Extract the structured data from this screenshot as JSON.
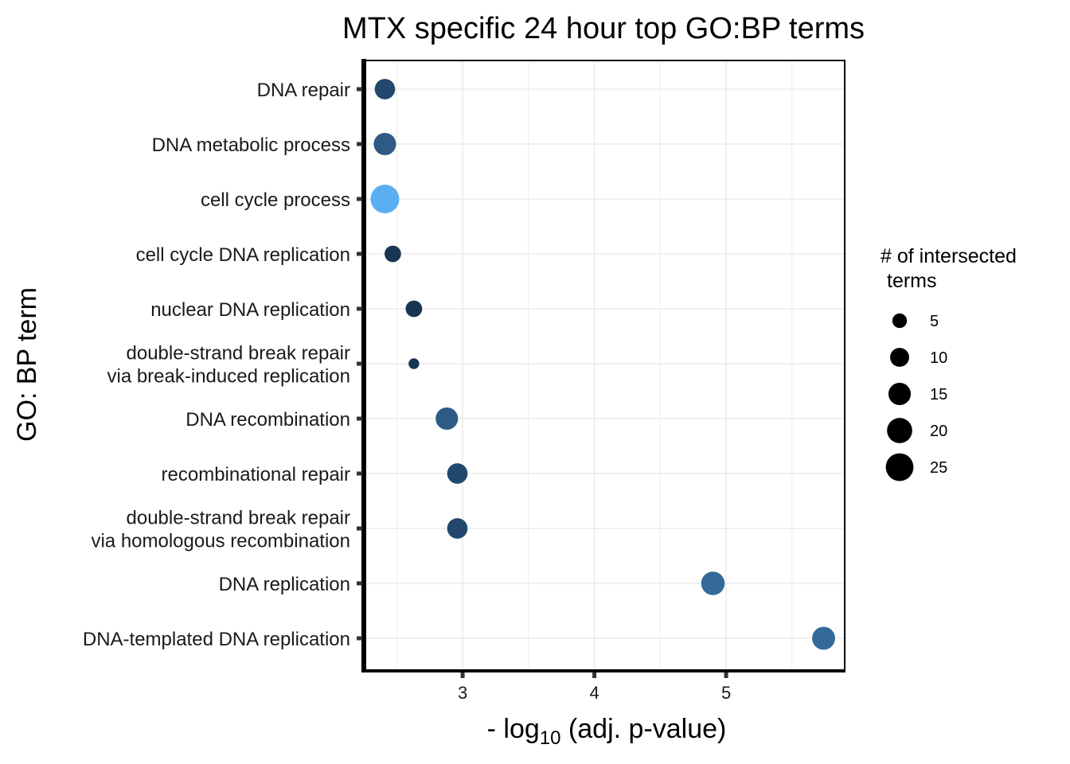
{
  "chart_data": {
    "type": "scatter",
    "title": "MTX specific 24 hour top GO:BP terms",
    "xlabel_prefix": "- log",
    "xlabel_subscript": "10",
    "xlabel_suffix": " (adj. p-value)",
    "ylabel": "GO: BP term",
    "xlim": [
      2.25,
      5.9
    ],
    "xticks": [
      3,
      4,
      5
    ],
    "grid": true,
    "categories": [
      [
        "DNA repair"
      ],
      [
        "DNA metabolic process"
      ],
      [
        "cell cycle process"
      ],
      [
        "cell cycle DNA replication"
      ],
      [
        "nuclear DNA replication"
      ],
      [
        "double-strand break repair",
        "via break-induced replication"
      ],
      [
        "DNA recombination"
      ],
      [
        "recombinational repair"
      ],
      [
        "double-strand break repair",
        "via homologous recombination"
      ],
      [
        "DNA replication"
      ],
      [
        "DNA-templated DNA replication"
      ]
    ],
    "points": [
      {
        "x": 2.41,
        "size": 12,
        "color": "#22496d"
      },
      {
        "x": 2.41,
        "size": 15,
        "color": "#2e5a86"
      },
      {
        "x": 2.41,
        "size": 27,
        "color": "#5aaff3"
      },
      {
        "x": 2.47,
        "size": 7,
        "color": "#1a3553"
      },
      {
        "x": 2.63,
        "size": 7,
        "color": "#1a3553"
      },
      {
        "x": 2.63,
        "size": 2,
        "color": "#1a3553"
      },
      {
        "x": 2.88,
        "size": 15,
        "color": "#2e5a86"
      },
      {
        "x": 2.96,
        "size": 12,
        "color": "#22496d"
      },
      {
        "x": 2.96,
        "size": 12,
        "color": "#22496d"
      },
      {
        "x": 4.9,
        "size": 17,
        "color": "#336a9a"
      },
      {
        "x": 5.74,
        "size": 16,
        "color": "#336a9a"
      }
    ],
    "legend": {
      "title_lines": [
        "# of intersected",
        "terms"
      ],
      "placement": "right",
      "sizes": [
        5,
        10,
        15,
        20,
        25
      ],
      "labels": [
        "5",
        "10",
        "15",
        "20",
        "25"
      ],
      "color": "#000000"
    }
  }
}
